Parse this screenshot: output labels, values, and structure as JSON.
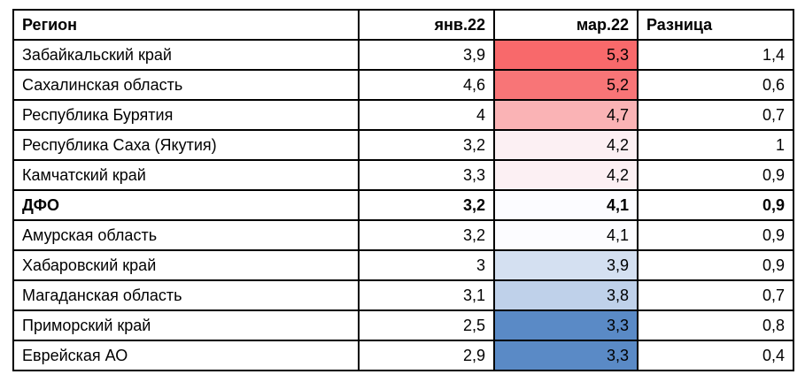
{
  "table": {
    "headers": [
      {
        "label": "Регион",
        "align": "left"
      },
      {
        "label": "янв.22",
        "align": "right"
      },
      {
        "label": "мар.22",
        "align": "right"
      },
      {
        "label": "Разница",
        "align": "left"
      }
    ],
    "rows": [
      {
        "region": "Забайкальский край",
        "jan": "3,9",
        "mar": "5,3",
        "diff": "1,4",
        "mar_bg": "#F8696B",
        "bold": false
      },
      {
        "region": "Сахалинская область",
        "jan": "4,6",
        "mar": "5,2",
        "diff": "0,6",
        "mar_bg": "#F87577",
        "bold": false
      },
      {
        "region": "Республика Бурятия",
        "jan": "4",
        "mar": "4,7",
        "diff": "0,7",
        "mar_bg": "#FAB3B5",
        "bold": false
      },
      {
        "region": "Республика Саха (Якутия)",
        "jan": "3,2",
        "mar": "4,2",
        "diff": "1",
        "mar_bg": "#FCF0F3",
        "bold": false
      },
      {
        "region": "Камчатский край",
        "jan": "3,3",
        "mar": "4,2",
        "diff": "0,9",
        "mar_bg": "#FCF0F3",
        "bold": false
      },
      {
        "region": "ДФО",
        "jan": "3,2",
        "mar": "4,1",
        "diff": "0,9",
        "mar_bg": "#FCFCFF",
        "bold": true
      },
      {
        "region": "Амурская область",
        "jan": "3,2",
        "mar": "4,1",
        "diff": "0,9",
        "mar_bg": "#FCFCFF",
        "bold": false
      },
      {
        "region": "Хабаровский край",
        "jan": "3",
        "mar": "3,9",
        "diff": "0,9",
        "mar_bg": "#D4E0F1",
        "bold": false
      },
      {
        "region": "Магаданская область",
        "jan": "3,1",
        "mar": "3,8",
        "diff": "0,7",
        "mar_bg": "#BFD1EA",
        "bold": false
      },
      {
        "region": "Приморский край",
        "jan": "2,5",
        "mar": "3,3",
        "diff": "0,8",
        "mar_bg": "#5A8AC6",
        "bold": false
      },
      {
        "region": "Еврейская АО",
        "jan": "2,9",
        "mar": "3,3",
        "diff": "0,4",
        "mar_bg": "#5A8AC6",
        "bold": false
      }
    ],
    "colors": {
      "border": "#000000",
      "text": "#000000",
      "background": "#FFFFFF"
    }
  },
  "chart_data": {
    "type": "table",
    "title": "",
    "columns": [
      "Регион",
      "янв.22",
      "мар.22",
      "Разница"
    ],
    "rows": [
      [
        "Забайкальский край",
        3.9,
        5.3,
        1.4
      ],
      [
        "Сахалинская область",
        4.6,
        5.2,
        0.6
      ],
      [
        "Республика Бурятия",
        4.0,
        4.7,
        0.7
      ],
      [
        "Республика Саха (Якутия)",
        3.2,
        4.2,
        1.0
      ],
      [
        "Камчатский край",
        3.3,
        4.2,
        0.9
      ],
      [
        "ДФО",
        3.2,
        4.1,
        0.9
      ],
      [
        "Амурская область",
        3.2,
        4.1,
        0.9
      ],
      [
        "Хабаровский край",
        3.0,
        3.9,
        0.9
      ],
      [
        "Магаданская область",
        3.1,
        3.8,
        0.7
      ],
      [
        "Приморский край",
        2.5,
        3.3,
        0.8
      ],
      [
        "Еврейская АО",
        2.9,
        3.3,
        0.4
      ]
    ],
    "heatmap": {
      "column": "мар.22",
      "colorscale": [
        {
          "value": 3.3,
          "color": "#5A8AC6"
        },
        {
          "value": 4.1,
          "color": "#FCFCFF"
        },
        {
          "value": 5.3,
          "color": "#F8696B"
        }
      ]
    },
    "decimal_separator": ",",
    "bold_row": "ДФО"
  }
}
